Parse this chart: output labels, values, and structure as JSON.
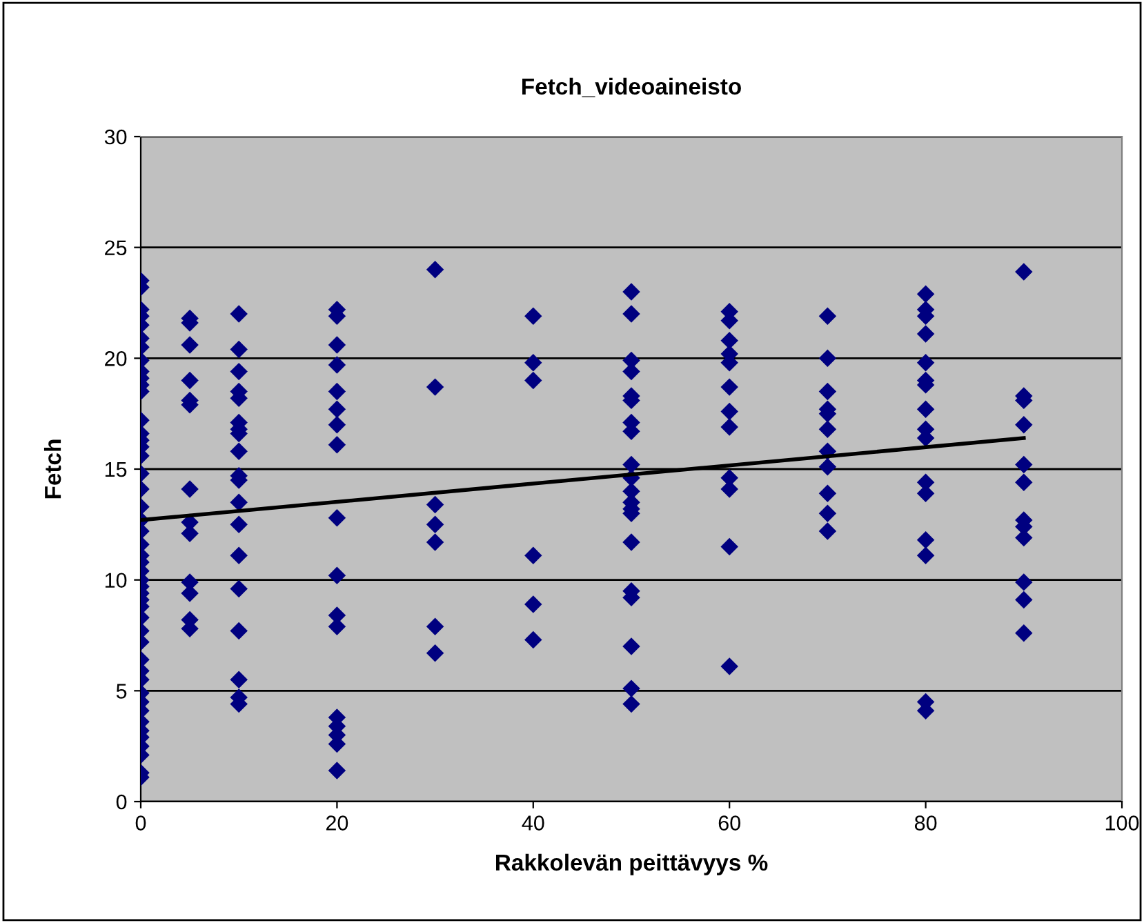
{
  "chart_data": {
    "type": "scatter",
    "title": "Fetch_videoaineisto",
    "xlabel": "Rakkolevän peittävyys %",
    "ylabel": "Fetch",
    "xlim": [
      0,
      100
    ],
    "xticks": [
      0,
      20,
      40,
      60,
      80,
      100
    ],
    "ylim": [
      0,
      30
    ],
    "yticks": [
      0,
      5,
      10,
      15,
      20,
      25,
      30
    ],
    "grid": "y",
    "series": [
      {
        "marker": "diamond",
        "color": "#000080",
        "x": [
          0,
          0,
          0,
          0,
          0,
          0,
          0,
          0,
          0,
          0,
          0,
          0,
          0,
          0,
          0,
          0,
          0,
          0,
          0,
          0,
          0,
          0,
          0,
          0,
          0,
          0,
          0,
          0,
          0,
          0,
          0,
          0,
          0,
          0,
          0,
          0,
          0,
          0,
          0,
          0,
          0,
          0,
          0,
          0,
          0,
          0,
          0,
          5,
          5,
          5,
          5,
          5,
          5,
          5,
          5,
          5,
          5,
          5,
          5,
          5,
          10,
          10,
          10,
          10,
          10,
          10,
          10,
          10,
          10,
          10,
          10,
          10,
          10,
          10,
          10,
          10,
          10,
          10,
          10,
          20,
          20,
          20,
          20,
          20,
          20,
          20,
          20,
          20,
          20,
          20,
          20,
          20,
          20,
          20,
          20,
          20,
          30,
          30,
          30,
          30,
          30,
          30,
          30,
          40,
          40,
          40,
          40,
          40,
          40,
          50,
          50,
          50,
          50,
          50,
          50,
          50,
          50,
          50,
          50,
          50,
          50,
          50,
          50,
          50,
          50,
          50,
          50,
          50,
          50,
          60,
          60,
          60,
          60,
          60,
          60,
          60,
          60,
          60,
          60,
          60,
          60,
          70,
          70,
          70,
          70,
          70,
          70,
          70,
          70,
          70,
          70,
          70,
          80,
          80,
          80,
          80,
          80,
          80,
          80,
          80,
          80,
          80,
          80,
          80,
          80,
          80,
          80,
          80,
          90,
          90,
          90,
          90,
          90,
          90,
          90,
          90,
          90,
          90,
          90,
          90
        ],
        "values": [
          23.5,
          23.2,
          22.2,
          21.9,
          21.5,
          20.9,
          20.5,
          19.9,
          19.4,
          19.1,
          18.8,
          18.5,
          17.2,
          16.6,
          16.3,
          16.0,
          15.6,
          14.8,
          14.1,
          13.3,
          12.7,
          12.2,
          11.6,
          11.1,
          10.8,
          10.4,
          10.0,
          9.7,
          9.4,
          9.1,
          8.8,
          8.3,
          7.7,
          7.2,
          6.4,
          5.9,
          5.5,
          4.9,
          4.5,
          4.1,
          3.6,
          3.2,
          2.9,
          2.5,
          2.1,
          1.3,
          1.1,
          21.8,
          21.6,
          20.6,
          19.0,
          18.1,
          17.9,
          14.1,
          12.6,
          12.1,
          9.9,
          9.4,
          8.2,
          7.8,
          22.0,
          20.4,
          19.4,
          18.5,
          18.2,
          17.1,
          16.8,
          16.6,
          15.8,
          14.7,
          14.5,
          13.5,
          12.5,
          11.1,
          9.6,
          7.7,
          5.5,
          4.7,
          4.4,
          22.2,
          21.9,
          20.6,
          19.7,
          18.5,
          17.7,
          17.0,
          16.1,
          12.8,
          10.2,
          8.4,
          7.9,
          3.8,
          3.4,
          3.0,
          2.6,
          1.4,
          24.0,
          18.7,
          13.4,
          12.5,
          11.7,
          7.9,
          6.7,
          21.9,
          19.8,
          19.0,
          11.1,
          8.9,
          7.3,
          23.0,
          22.0,
          19.9,
          19.4,
          18.3,
          18.1,
          17.1,
          16.7,
          15.2,
          14.6,
          14.0,
          13.5,
          13.2,
          13.0,
          11.7,
          9.5,
          9.2,
          7.0,
          5.1,
          4.4,
          22.1,
          21.7,
          20.8,
          20.2,
          19.8,
          18.7,
          17.6,
          16.9,
          14.6,
          14.1,
          11.5,
          6.1,
          21.9,
          20.0,
          18.5,
          17.7,
          17.5,
          16.8,
          15.8,
          15.1,
          13.9,
          13.0,
          12.2,
          22.9,
          22.2,
          21.9,
          21.1,
          19.8,
          19.0,
          18.8,
          17.7,
          16.8,
          16.4,
          14.4,
          13.9,
          11.8,
          11.1,
          4.5,
          4.1,
          23.9,
          18.3,
          18.1,
          17.0,
          15.2,
          14.4,
          12.7,
          12.4,
          11.9,
          9.9,
          9.1,
          7.6
        ]
      },
      {
        "type": "line",
        "color": "#000000",
        "x": [
          0,
          90
        ],
        "values": [
          12.7,
          16.4
        ]
      }
    ]
  }
}
